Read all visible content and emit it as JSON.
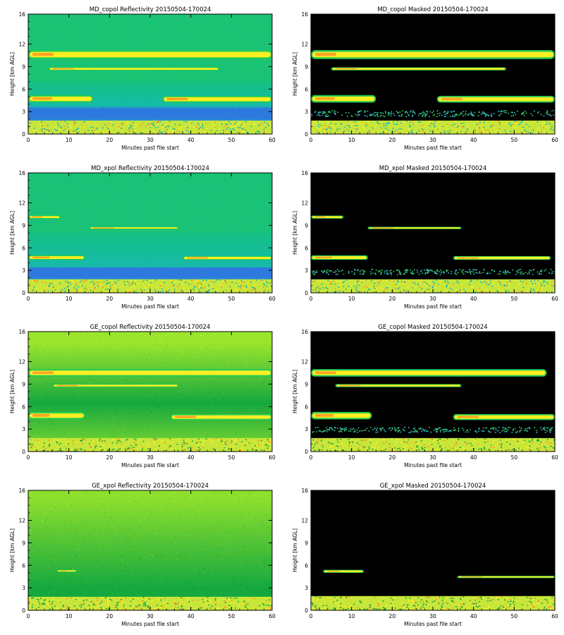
{
  "figure": {
    "xlabel": "Minutes past file start",
    "ylabel": "Height [km AGL]"
  },
  "chart_data": [
    {
      "type": "heatmap",
      "title": "MD_copol Reflectivity 20150504-170024",
      "masked": false,
      "palette": "md-copol",
      "xlim": [
        0,
        60
      ],
      "ylim": [
        0,
        16
      ],
      "xticks": [
        0,
        10,
        20,
        30,
        40,
        50,
        60
      ],
      "yticks": [
        0,
        3,
        6,
        9,
        12,
        16
      ],
      "xlabel": "Minutes past file start",
      "ylabel": "Height [km AGL]",
      "grid": false,
      "features": [
        {
          "kind": "surface",
          "y0": 0.0,
          "y1": 1.8
        },
        {
          "kind": "layer",
          "y0": 2.0,
          "y1": 3.4
        },
        {
          "kind": "cloud",
          "x0": 0,
          "x1": 16,
          "y0": 4.2,
          "y1": 5.2
        },
        {
          "kind": "cloud",
          "x0": 33,
          "x1": 60,
          "y0": 4.2,
          "y1": 5.1
        },
        {
          "kind": "cloud",
          "x0": 5,
          "x1": 47,
          "y0": 8.5,
          "y1": 8.9
        },
        {
          "kind": "cloud",
          "x0": 0,
          "x1": 60,
          "y0": 10.0,
          "y1": 11.2
        }
      ]
    },
    {
      "type": "heatmap",
      "title": "MD_copol Masked 20150504-170024",
      "masked": true,
      "palette": "md-copol",
      "xlim": [
        0,
        60
      ],
      "ylim": [
        0,
        16
      ],
      "xticks": [
        0,
        10,
        20,
        30,
        40,
        50,
        60
      ],
      "yticks": [
        0,
        3,
        6,
        9,
        12,
        16
      ],
      "xlabel": "Minutes past file start",
      "ylabel": "Height [km AGL]",
      "grid": false,
      "features": [
        {
          "kind": "surface",
          "y0": 0.0,
          "y1": 1.8
        },
        {
          "kind": "layer",
          "y0": 2.4,
          "y1": 3.2
        },
        {
          "kind": "cloud",
          "x0": 0,
          "x1": 16,
          "y0": 4.2,
          "y1": 5.2
        },
        {
          "kind": "cloud",
          "x0": 31,
          "x1": 60,
          "y0": 4.2,
          "y1": 5.1
        },
        {
          "kind": "cloud",
          "x0": 5,
          "x1": 48,
          "y0": 8.5,
          "y1": 8.9
        },
        {
          "kind": "cloud",
          "x0": 0,
          "x1": 60,
          "y0": 10.0,
          "y1": 11.2
        }
      ]
    },
    {
      "type": "heatmap",
      "title": "MD_xpol Reflectivity 20150504-170024",
      "masked": false,
      "palette": "md-xpol",
      "xlim": [
        0,
        60
      ],
      "ylim": [
        0,
        16
      ],
      "xticks": [
        0,
        10,
        20,
        30,
        40,
        50,
        60
      ],
      "yticks": [
        0,
        3,
        6,
        9,
        12,
        16
      ],
      "xlabel": "Minutes past file start",
      "ylabel": "Height [km AGL]",
      "grid": false,
      "features": [
        {
          "kind": "surface",
          "y0": 0.0,
          "y1": 1.8
        },
        {
          "kind": "layer",
          "y0": 2.0,
          "y1": 3.4
        },
        {
          "kind": "cloud",
          "x0": 0,
          "x1": 14,
          "y0": 4.4,
          "y1": 5.0
        },
        {
          "kind": "cloud",
          "x0": 38,
          "x1": 60,
          "y0": 4.4,
          "y1": 4.9
        },
        {
          "kind": "cloud",
          "x0": 15,
          "x1": 37,
          "y0": 8.5,
          "y1": 8.8
        },
        {
          "kind": "cloud",
          "x0": 0,
          "x1": 8,
          "y0": 9.9,
          "y1": 10.3
        }
      ]
    },
    {
      "type": "heatmap",
      "title": "MD_xpol Masked 20150504-170024",
      "masked": true,
      "palette": "md-xpol",
      "xlim": [
        0,
        60
      ],
      "ylim": [
        0,
        16
      ],
      "xticks": [
        0,
        10,
        20,
        30,
        40,
        50,
        60
      ],
      "yticks": [
        0,
        3,
        6,
        9,
        12,
        16
      ],
      "xlabel": "Minutes past file start",
      "ylabel": "Height [km AGL]",
      "grid": false,
      "features": [
        {
          "kind": "surface",
          "y0": 0.0,
          "y1": 1.8
        },
        {
          "kind": "layer",
          "y0": 2.5,
          "y1": 3.2
        },
        {
          "kind": "cloud",
          "x0": 0,
          "x1": 14,
          "y0": 4.4,
          "y1": 5.0
        },
        {
          "kind": "cloud",
          "x0": 35,
          "x1": 59,
          "y0": 4.4,
          "y1": 4.9
        },
        {
          "kind": "cloud",
          "x0": 14,
          "x1": 37,
          "y0": 8.5,
          "y1": 8.8
        },
        {
          "kind": "cloud",
          "x0": 0,
          "x1": 8,
          "y0": 9.9,
          "y1": 10.3
        }
      ]
    },
    {
      "type": "heatmap",
      "title": "GE_copol Reflectivity 20150504-170024",
      "masked": false,
      "palette": "ge-copol",
      "xlim": [
        0,
        60
      ],
      "ylim": [
        0,
        16
      ],
      "xticks": [
        0,
        10,
        20,
        30,
        40,
        50,
        60
      ],
      "yticks": [
        0,
        3,
        6,
        9,
        12,
        16
      ],
      "xlabel": "Minutes past file start",
      "ylabel": "Height [km AGL]",
      "grid": false,
      "features": [
        {
          "kind": "surface",
          "y0": 0.0,
          "y1": 1.8
        },
        {
          "kind": "cloud",
          "x0": 0,
          "x1": 14,
          "y0": 4.3,
          "y1": 5.3
        },
        {
          "kind": "cloud",
          "x0": 35,
          "x1": 60,
          "y0": 4.2,
          "y1": 5.0
        },
        {
          "kind": "cloud",
          "x0": 6,
          "x1": 37,
          "y0": 8.6,
          "y1": 9.0
        },
        {
          "kind": "cloud",
          "x0": 0,
          "x1": 60,
          "y0": 10.0,
          "y1": 11.0
        }
      ]
    },
    {
      "type": "heatmap",
      "title": "GE_copol Masked 20150504-170024",
      "masked": true,
      "palette": "ge-copol",
      "xlim": [
        0,
        60
      ],
      "ylim": [
        0,
        16
      ],
      "xticks": [
        0,
        10,
        20,
        30,
        40,
        50,
        60
      ],
      "yticks": [
        0,
        3,
        6,
        9,
        12,
        16
      ],
      "xlabel": "Minutes past file start",
      "ylabel": "Height [km AGL]",
      "grid": false,
      "features": [
        {
          "kind": "surface",
          "y0": 0.0,
          "y1": 1.8
        },
        {
          "kind": "layer",
          "y0": 2.6,
          "y1": 3.3
        },
        {
          "kind": "cloud",
          "x0": 0,
          "x1": 15,
          "y0": 4.3,
          "y1": 5.3
        },
        {
          "kind": "cloud",
          "x0": 35,
          "x1": 60,
          "y0": 4.2,
          "y1": 5.0
        },
        {
          "kind": "cloud",
          "x0": 6,
          "x1": 37,
          "y0": 8.6,
          "y1": 9.0
        },
        {
          "kind": "cloud",
          "x0": 0,
          "x1": 58,
          "y0": 10.0,
          "y1": 11.0
        }
      ]
    },
    {
      "type": "heatmap",
      "title": "GE_xpol Reflectivity 20150504-170024",
      "masked": false,
      "palette": "ge-xpol",
      "xlim": [
        0,
        60
      ],
      "ylim": [
        0,
        16
      ],
      "xticks": [
        0,
        10,
        20,
        30,
        40,
        50,
        60
      ],
      "yticks": [
        0,
        3,
        6,
        9,
        12,
        16
      ],
      "xlabel": "Minutes past file start",
      "ylabel": "Height [km AGL]",
      "grid": false,
      "features": [
        {
          "kind": "surface",
          "y0": 0.0,
          "y1": 1.8
        },
        {
          "kind": "cloud",
          "x0": 7,
          "x1": 12,
          "y0": 5.1,
          "y1": 5.4
        }
      ]
    },
    {
      "type": "heatmap",
      "title": "GE_xpol Masked 20150504-170024",
      "masked": true,
      "palette": "ge-xpol",
      "xlim": [
        0,
        60
      ],
      "ylim": [
        0,
        16
      ],
      "xticks": [
        0,
        10,
        20,
        30,
        40,
        50,
        60
      ],
      "yticks": [
        0,
        3,
        6,
        9,
        12,
        16
      ],
      "xlabel": "Minutes past file start",
      "ylabel": "Height [km AGL]",
      "grid": false,
      "features": [
        {
          "kind": "surface",
          "y0": 0.0,
          "y1": 1.9
        },
        {
          "kind": "cloud",
          "x0": 3,
          "x1": 13,
          "y0": 5.0,
          "y1": 5.4
        },
        {
          "kind": "cloud",
          "x0": 36,
          "x1": 60,
          "y0": 4.3,
          "y1": 4.6
        }
      ]
    }
  ],
  "colors": {
    "background": "#ffffff",
    "mask": "#000000",
    "md_base": "#14c27a",
    "md_lower": "#16b8b4",
    "md_band": "#2f76e0",
    "ge_top": "#9be52c",
    "ge_mid": "#15a83e",
    "surface": "#c8e63a",
    "cloud_core": "#ffee22",
    "cloud_hot": "#ff8a2a",
    "cloud_edge": "#22cc55"
  }
}
